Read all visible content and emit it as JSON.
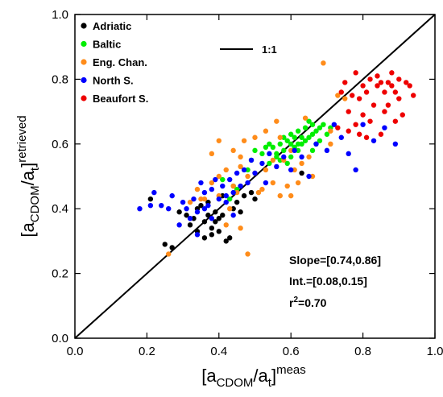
{
  "chart_data": {
    "type": "scatter",
    "xlim": [
      0,
      1
    ],
    "ylim": [
      0,
      1
    ],
    "xticks": [
      "0.0",
      "0.2",
      "0.4",
      "0.6",
      "0.8",
      "1.0"
    ],
    "yticks": [
      "0.0",
      "0.2",
      "0.4",
      "0.6",
      "0.8",
      "1.0"
    ],
    "xlabel": {
      "base": "[a",
      "sub1": "CDOM",
      "mid": "/a",
      "sub2": "t",
      "close": "]",
      "sup": "meas"
    },
    "ylabel": {
      "base": "[a",
      "sub1": "CDOM",
      "mid": "/a",
      "sub2": "t",
      "close": "]",
      "sup": "retrieved"
    },
    "reference_line": {
      "label": "1:1",
      "color": "#000000",
      "x": [
        0,
        1
      ],
      "y": [
        0,
        1
      ]
    },
    "legend_position": "top-left",
    "grid": false,
    "stats": {
      "slope": "Slope=[0.74,0.86]",
      "intercept": "Int.=[0.08,0.15]",
      "r2_prefix": "r",
      "r2_sup": "2",
      "r2_value": "=0.70"
    },
    "series": [
      {
        "name": "Adriatic",
        "color": "#000000",
        "points": [
          [
            0.21,
            0.43
          ],
          [
            0.25,
            0.29
          ],
          [
            0.27,
            0.28
          ],
          [
            0.29,
            0.39
          ],
          [
            0.31,
            0.38
          ],
          [
            0.32,
            0.35
          ],
          [
            0.33,
            0.37
          ],
          [
            0.34,
            0.4
          ],
          [
            0.35,
            0.41
          ],
          [
            0.36,
            0.36
          ],
          [
            0.37,
            0.38
          ],
          [
            0.37,
            0.42
          ],
          [
            0.38,
            0.34
          ],
          [
            0.39,
            0.39
          ],
          [
            0.39,
            0.36
          ],
          [
            0.4,
            0.37
          ],
          [
            0.41,
            0.38
          ],
          [
            0.42,
            0.3
          ],
          [
            0.43,
            0.31
          ],
          [
            0.44,
            0.4
          ],
          [
            0.45,
            0.42
          ],
          [
            0.47,
            0.44
          ],
          [
            0.49,
            0.45
          ],
          [
            0.5,
            0.43
          ],
          [
            0.41,
            0.44
          ],
          [
            0.34,
            0.33
          ],
          [
            0.36,
            0.31
          ],
          [
            0.4,
            0.33
          ],
          [
            0.46,
            0.39
          ],
          [
            0.38,
            0.32
          ],
          [
            0.63,
            0.51
          ]
        ]
      },
      {
        "name": "Baltic",
        "color": "#00ee00",
        "points": [
          [
            0.43,
            0.43
          ],
          [
            0.44,
            0.47
          ],
          [
            0.45,
            0.46
          ],
          [
            0.48,
            0.52
          ],
          [
            0.49,
            0.55
          ],
          [
            0.5,
            0.58
          ],
          [
            0.52,
            0.57
          ],
          [
            0.53,
            0.59
          ],
          [
            0.54,
            0.6
          ],
          [
            0.55,
            0.59
          ],
          [
            0.56,
            0.57
          ],
          [
            0.57,
            0.55
          ],
          [
            0.57,
            0.6
          ],
          [
            0.58,
            0.62
          ],
          [
            0.58,
            0.58
          ],
          [
            0.59,
            0.61
          ],
          [
            0.6,
            0.63
          ],
          [
            0.6,
            0.56
          ],
          [
            0.61,
            0.62
          ],
          [
            0.61,
            0.59
          ],
          [
            0.62,
            0.64
          ],
          [
            0.62,
            0.58
          ],
          [
            0.63,
            0.62
          ],
          [
            0.63,
            0.6
          ],
          [
            0.64,
            0.65
          ],
          [
            0.64,
            0.61
          ],
          [
            0.65,
            0.62
          ],
          [
            0.65,
            0.67
          ],
          [
            0.66,
            0.63
          ],
          [
            0.66,
            0.58
          ],
          [
            0.67,
            0.64
          ],
          [
            0.67,
            0.6
          ],
          [
            0.68,
            0.65
          ],
          [
            0.68,
            0.61
          ],
          [
            0.69,
            0.66
          ],
          [
            0.7,
            0.63
          ],
          [
            0.56,
            0.56
          ],
          [
            0.54,
            0.54
          ],
          [
            0.59,
            0.54
          ],
          [
            0.62,
            0.6
          ],
          [
            0.6,
            0.6
          ],
          [
            0.66,
            0.66
          ],
          [
            0.71,
            0.65
          ],
          [
            0.41,
            0.49
          ]
        ]
      },
      {
        "name": "Eng. Chan.",
        "color": "#ff8c1a",
        "points": [
          [
            0.26,
            0.26
          ],
          [
            0.32,
            0.42
          ],
          [
            0.34,
            0.46
          ],
          [
            0.36,
            0.43
          ],
          [
            0.38,
            0.48
          ],
          [
            0.4,
            0.5
          ],
          [
            0.4,
            0.44
          ],
          [
            0.42,
            0.52
          ],
          [
            0.42,
            0.35
          ],
          [
            0.43,
            0.4
          ],
          [
            0.44,
            0.58
          ],
          [
            0.45,
            0.45
          ],
          [
            0.46,
            0.53
          ],
          [
            0.46,
            0.34
          ],
          [
            0.47,
            0.61
          ],
          [
            0.48,
            0.5
          ],
          [
            0.48,
            0.26
          ],
          [
            0.5,
            0.51
          ],
          [
            0.5,
            0.62
          ],
          [
            0.52,
            0.46
          ],
          [
            0.53,
            0.64
          ],
          [
            0.53,
            0.52
          ],
          [
            0.55,
            0.55
          ],
          [
            0.55,
            0.48
          ],
          [
            0.56,
            0.67
          ],
          [
            0.57,
            0.62
          ],
          [
            0.58,
            0.55
          ],
          [
            0.59,
            0.47
          ],
          [
            0.6,
            0.58
          ],
          [
            0.61,
            0.52
          ],
          [
            0.62,
            0.48
          ],
          [
            0.63,
            0.54
          ],
          [
            0.64,
            0.68
          ],
          [
            0.65,
            0.56
          ],
          [
            0.66,
            0.5
          ],
          [
            0.69,
            0.85
          ],
          [
            0.71,
            0.64
          ],
          [
            0.71,
            0.6
          ],
          [
            0.73,
            0.75
          ],
          [
            0.75,
            0.74
          ],
          [
            0.38,
            0.57
          ],
          [
            0.4,
            0.61
          ],
          [
            0.44,
            0.47
          ],
          [
            0.51,
            0.45
          ],
          [
            0.57,
            0.44
          ],
          [
            0.46,
            0.56
          ],
          [
            0.6,
            0.44
          ],
          [
            0.35,
            0.43
          ]
        ]
      },
      {
        "name": "North S.",
        "color": "#0000ff",
        "points": [
          [
            0.18,
            0.4
          ],
          [
            0.21,
            0.41
          ],
          [
            0.22,
            0.45
          ],
          [
            0.24,
            0.41
          ],
          [
            0.26,
            0.4
          ],
          [
            0.27,
            0.44
          ],
          [
            0.29,
            0.35
          ],
          [
            0.3,
            0.42
          ],
          [
            0.31,
            0.4
          ],
          [
            0.32,
            0.37
          ],
          [
            0.33,
            0.43
          ],
          [
            0.34,
            0.39
          ],
          [
            0.34,
            0.32
          ],
          [
            0.35,
            0.48
          ],
          [
            0.36,
            0.45
          ],
          [
            0.37,
            0.41
          ],
          [
            0.38,
            0.46
          ],
          [
            0.39,
            0.49
          ],
          [
            0.4,
            0.43
          ],
          [
            0.41,
            0.47
          ],
          [
            0.42,
            0.42
          ],
          [
            0.43,
            0.49
          ],
          [
            0.44,
            0.45
          ],
          [
            0.45,
            0.51
          ],
          [
            0.46,
            0.47
          ],
          [
            0.47,
            0.52
          ],
          [
            0.48,
            0.48
          ],
          [
            0.49,
            0.55
          ],
          [
            0.5,
            0.51
          ],
          [
            0.52,
            0.54
          ],
          [
            0.53,
            0.48
          ],
          [
            0.54,
            0.57
          ],
          [
            0.56,
            0.53
          ],
          [
            0.58,
            0.56
          ],
          [
            0.6,
            0.52
          ],
          [
            0.61,
            0.58
          ],
          [
            0.63,
            0.56
          ],
          [
            0.65,
            0.5
          ],
          [
            0.67,
            0.6
          ],
          [
            0.7,
            0.58
          ],
          [
            0.72,
            0.66
          ],
          [
            0.74,
            0.62
          ],
          [
            0.76,
            0.57
          ],
          [
            0.78,
            0.52
          ],
          [
            0.8,
            0.66
          ],
          [
            0.83,
            0.61
          ],
          [
            0.86,
            0.65
          ],
          [
            0.89,
            0.6
          ],
          [
            0.42,
            0.44
          ],
          [
            0.44,
            0.38
          ],
          [
            0.36,
            0.4
          ],
          [
            0.38,
            0.37
          ]
        ]
      },
      {
        "name": "Beaufort S.",
        "color": "#ee0000",
        "points": [
          [
            0.73,
            0.65
          ],
          [
            0.74,
            0.76
          ],
          [
            0.75,
            0.79
          ],
          [
            0.76,
            0.7
          ],
          [
            0.77,
            0.75
          ],
          [
            0.78,
            0.82
          ],
          [
            0.78,
            0.66
          ],
          [
            0.79,
            0.74
          ],
          [
            0.8,
            0.78
          ],
          [
            0.8,
            0.69
          ],
          [
            0.81,
            0.76
          ],
          [
            0.82,
            0.8
          ],
          [
            0.82,
            0.67
          ],
          [
            0.83,
            0.72
          ],
          [
            0.84,
            0.78
          ],
          [
            0.84,
            0.81
          ],
          [
            0.85,
            0.63
          ],
          [
            0.85,
            0.79
          ],
          [
            0.86,
            0.76
          ],
          [
            0.86,
            0.7
          ],
          [
            0.87,
            0.79
          ],
          [
            0.87,
            0.72
          ],
          [
            0.88,
            0.78
          ],
          [
            0.88,
            0.82
          ],
          [
            0.89,
            0.76
          ],
          [
            0.89,
            0.67
          ],
          [
            0.9,
            0.8
          ],
          [
            0.9,
            0.74
          ],
          [
            0.91,
            0.69
          ],
          [
            0.92,
            0.79
          ],
          [
            0.93,
            0.78
          ],
          [
            0.94,
            0.75
          ],
          [
            0.79,
            0.63
          ],
          [
            0.81,
            0.62
          ],
          [
            0.76,
            0.64
          ]
        ]
      }
    ]
  }
}
